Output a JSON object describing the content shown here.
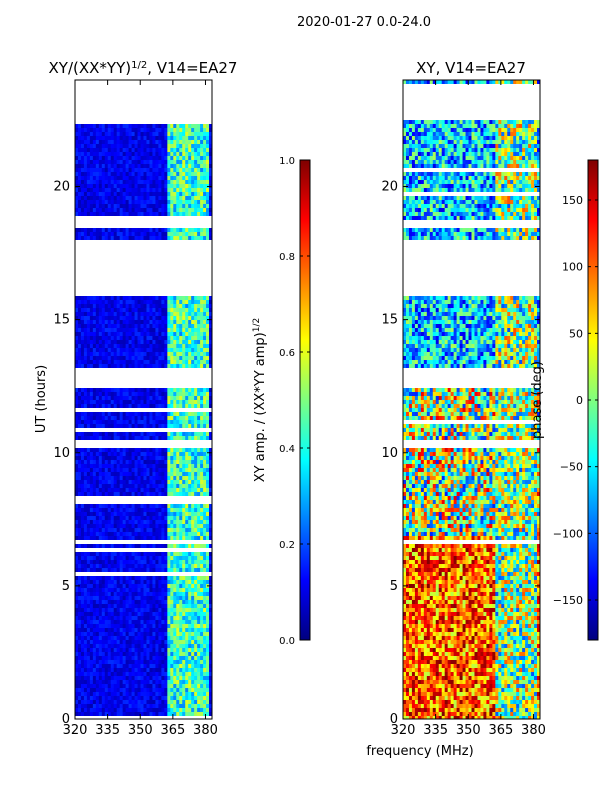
{
  "figure": {
    "suptitle": "2020-01-27 0.0-24.0",
    "xlabel_shared": "frequency (MHz)"
  },
  "colormap": [
    "#00007f",
    "#0000ff",
    "#007fff",
    "#00ffff",
    "#7fff7f",
    "#ffff00",
    "#ff7f00",
    "#ff0000",
    "#7f0000"
  ],
  "chart_data": [
    {
      "type": "heatmap",
      "title_main": "XY/(XX*YY)",
      "title_sup": "1/2",
      "title_tail": ", V14=EA27",
      "xlabel": "",
      "ylabel": "UT (hours)",
      "xlim": [
        320,
        383
      ],
      "ylim": [
        0,
        24
      ],
      "xticks": [
        320,
        335,
        350,
        365,
        380
      ],
      "yticks": [
        0,
        5,
        10,
        15,
        20
      ],
      "colorbar": {
        "label_main": "XY amp. / (XX*YY amp)",
        "label_sup": "1/2",
        "range": [
          0.0,
          1.0
        ],
        "ticks": [
          "0.0",
          "0.2",
          "0.4",
          "0.6",
          "0.8",
          "1.0"
        ],
        "tick_values": [
          0.0,
          0.2,
          0.4,
          0.6,
          0.8,
          1.0
        ]
      }
    },
    {
      "type": "heatmap",
      "title_main": "XY, V14=EA27",
      "title_sup": "",
      "title_tail": "",
      "xlabel": "frequency (MHz)",
      "ylabel": "",
      "xlim": [
        320,
        383
      ],
      "ylim": [
        0,
        24
      ],
      "xticks": [
        320,
        335,
        350,
        365,
        380
      ],
      "yticks": [
        0,
        5,
        10,
        15,
        20
      ],
      "colorbar": {
        "label_main": "phase (deg)",
        "label_sup": "",
        "range": [
          -180,
          180
        ],
        "ticks": [
          "−150",
          "−100",
          "−50",
          "0",
          "50",
          "100",
          "150"
        ],
        "tick_values": [
          -150,
          -100,
          -50,
          0,
          50,
          100,
          150
        ]
      }
    }
  ],
  "data_gaps_hours": [
    [
      22.6,
      23.9
    ],
    [
      18.5,
      18.8
    ],
    [
      16.0,
      18.1
    ],
    [
      12.5,
      13.3
    ],
    [
      10.3,
      10.5
    ],
    [
      6.6,
      6.8
    ]
  ]
}
